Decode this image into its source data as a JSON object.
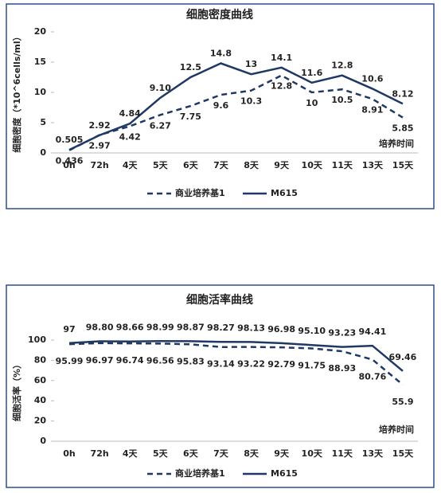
{
  "chart_data": [
    {
      "type": "line",
      "title": "细胞密度曲线",
      "y_label": "细胞密度（*10^6cells/ml）",
      "x_label": "培养时间",
      "categories": [
        "0h",
        "72h",
        "4天",
        "5天",
        "6天",
        "7天",
        "8天",
        "9天",
        "10天",
        "11天",
        "13天",
        "15天"
      ],
      "ylim": [
        0,
        20
      ],
      "yticks": [
        0,
        5,
        10,
        15,
        20
      ],
      "grid": false,
      "legend": "bottom",
      "series": [
        {
          "name": "商业培养基1",
          "color": "#1f3864",
          "line_style": "dashed",
          "values": [
            0.436,
            2.97,
            4.42,
            6.27,
            7.75,
            9.6,
            10.3,
            12.8,
            10,
            10.5,
            8.91,
            5.85
          ]
        },
        {
          "name": "M615",
          "color": "#1f3864",
          "line_style": "solid",
          "values": [
            0.505,
            2.92,
            4.84,
            9.1,
            12.5,
            14.8,
            13,
            14.1,
            11.6,
            12.8,
            10.6,
            8.12
          ],
          "value_labels": [
            "0.505",
            "2.92",
            "4.84",
            "9.10",
            "12.5",
            "14.8",
            "13",
            "14.1",
            "11.6",
            "12.8",
            "10.6",
            "8.12"
          ]
        }
      ]
    },
    {
      "type": "line",
      "title": "细胞活率曲线",
      "y_label": "细胞活率（%）",
      "x_label": "培养时间",
      "categories": [
        "0h",
        "72h",
        "4天",
        "5天",
        "6天",
        "7天",
        "8天",
        "9天",
        "10天",
        "11天",
        "13天",
        "15天"
      ],
      "ylim": [
        0,
        100
      ],
      "yticks": [
        0,
        20,
        40,
        60,
        80,
        100
      ],
      "grid": false,
      "legend": "bottom",
      "series": [
        {
          "name": "商业培养基1",
          "color": "#1f3864",
          "line_style": "dashed",
          "values": [
            95.99,
            96.97,
            96.74,
            96.56,
            95.83,
            93.14,
            93.22,
            92.79,
            91.75,
            88.93,
            80.76,
            55.9
          ]
        },
        {
          "name": "M615",
          "color": "#1f3864",
          "line_style": "solid",
          "values": [
            97,
            98.8,
            98.66,
            98.99,
            98.87,
            98.27,
            98.13,
            96.98,
            95.1,
            93.23,
            94.41,
            69.46
          ],
          "value_labels": [
            "97",
            "98.80",
            "98.66",
            "98.99",
            "98.87",
            "98.27",
            "98.13",
            "96.98",
            "95.10",
            "93.23",
            "94.41",
            "69.46"
          ]
        }
      ]
    }
  ]
}
